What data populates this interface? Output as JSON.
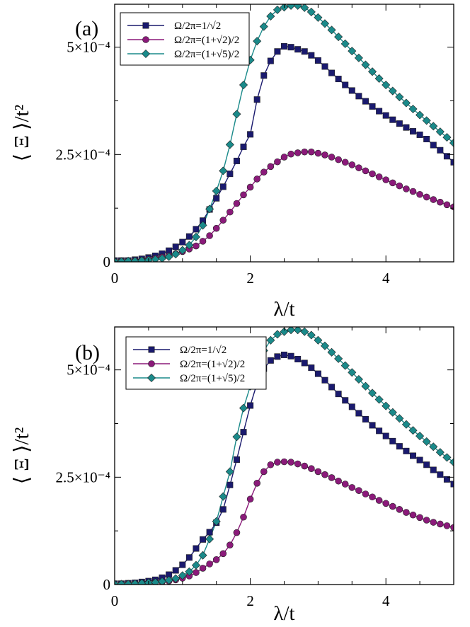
{
  "chart_data": [
    {
      "type": "line",
      "panel_label": "(a)",
      "xlabel": "λ/t",
      "ylabel": "⟨ Ξ ⟩/t²",
      "xlim": [
        0,
        5
      ],
      "ylim": [
        0,
        0.0006
      ],
      "xticks": [
        {
          "value": 0,
          "label": "0"
        },
        {
          "value": 2,
          "label": "2"
        },
        {
          "value": 4,
          "label": "4"
        }
      ],
      "yticks": [
        {
          "value": 0,
          "label": "0"
        },
        {
          "value": 0.00025,
          "label": "2.5×10⁻⁴"
        },
        {
          "value": 0.0005,
          "label": "5×10⁻⁴"
        }
      ],
      "legend_position": "top-left",
      "x": [
        0.0,
        0.1,
        0.2,
        0.3,
        0.4,
        0.5,
        0.6,
        0.7,
        0.8,
        0.9,
        1.0,
        1.1,
        1.2,
        1.3,
        1.4,
        1.5,
        1.6,
        1.7,
        1.8,
        1.9,
        2.0,
        2.1,
        2.2,
        2.3,
        2.4,
        2.5,
        2.6,
        2.7,
        2.8,
        2.9,
        3.0,
        3.1,
        3.2,
        3.3,
        3.4,
        3.5,
        3.6,
        3.7,
        3.8,
        3.9,
        4.0,
        4.1,
        4.2,
        4.3,
        4.4,
        4.5,
        4.6,
        4.7,
        4.8,
        4.9,
        5.0
      ],
      "series": [
        {
          "name": "Ω/2π=1/√2",
          "color": "#1a1a6e",
          "marker": "square",
          "values": [
            3e-06,
            3e-06,
            3e-06,
            5e-06,
            7e-06,
            1e-05,
            1.4e-05,
            1.9e-05,
            2.6e-05,
            3.5e-05,
            4.6e-05,
            5.9e-05,
            7.6e-05,
            9.6e-05,
            0.000122,
            0.000148,
            0.000175,
            0.000205,
            0.000235,
            0.000268,
            0.000297,
            0.000378,
            0.000434,
            0.000468,
            0.00049,
            0.000502,
            0.0005,
            0.000495,
            0.00049,
            0.000481,
            0.000469,
            0.000455,
            0.00044,
            0.000426,
            0.000412,
            0.000399,
            0.000386,
            0.000374,
            0.000362,
            0.000351,
            0.000341,
            0.000331,
            0.000322,
            0.000313,
            0.000304,
            0.000296,
            0.000286,
            0.000272,
            0.00026,
            0.000246,
            0.000232
          ]
        },
        {
          "name": "Ω/2π=(1+√2)/2",
          "color": "#8b1a7a",
          "marker": "circle",
          "values": [
            1e-06,
            2e-06,
            2e-06,
            3e-06,
            4e-06,
            6e-06,
            8e-06,
            1.1e-05,
            1.4e-05,
            1.9e-05,
            2.4e-05,
            3e-05,
            3.7e-05,
            4.8e-05,
            6.1e-05,
            7.8e-05,
            9.7e-05,
            0.000116,
            0.000136,
            0.000156,
            0.000174,
            0.000193,
            0.000209,
            0.000222,
            0.000233,
            0.000244,
            0.000251,
            0.000254,
            0.000256,
            0.000256,
            0.000253,
            0.000249,
            0.000244,
            0.000238,
            0.000232,
            0.000226,
            0.000219,
            0.000212,
            0.000205,
            0.000198,
            0.000191,
            0.000184,
            0.000177,
            0.00017,
            0.000164,
            0.000157,
            0.000151,
            0.000145,
            0.000139,
            0.000133,
            0.000128
          ]
        },
        {
          "name": "Ω/2π=(1+√5)/2",
          "color": "#1a8a8a",
          "marker": "diamond",
          "values": [
            1e-06,
            1e-06,
            2e-06,
            2e-06,
            3e-06,
            4e-06,
            6e-06,
            8e-06,
            1.2e-05,
            1.8e-05,
            2.7e-05,
            3.9e-05,
            5.8e-05,
            8.5e-05,
            0.000123,
            0.000165,
            0.000212,
            0.000273,
            0.000344,
            0.000412,
            0.00047,
            0.000514,
            0.000548,
            0.000572,
            0.000587,
            0.000593,
            0.000597,
            0.000597,
            0.000592,
            0.000582,
            0.000569,
            0.000555,
            0.00054,
            0.000524,
            0.000508,
            0.000491,
            0.000475,
            0.000459,
            0.000443,
            0.000427,
            0.000412,
            0.000398,
            0.000384,
            0.00037,
            0.000356,
            0.000342,
            0.000329,
            0.000316,
            0.000303,
            0.00029,
            0.000277
          ]
        }
      ]
    },
    {
      "type": "line",
      "panel_label": "(b)",
      "xlabel": "λ/t",
      "ylabel": "⟨ Ξ ⟩/t²",
      "xlim": [
        0,
        5
      ],
      "ylim": [
        0,
        0.0006
      ],
      "xticks": [
        {
          "value": 0,
          "label": "0"
        },
        {
          "value": 2,
          "label": "2"
        },
        {
          "value": 4,
          "label": "4"
        }
      ],
      "yticks": [
        {
          "value": 0,
          "label": "0"
        },
        {
          "value": 0.00025,
          "label": "2.5×10⁻⁴"
        },
        {
          "value": 0.0005,
          "label": "5×10⁻⁴"
        }
      ],
      "legend_position": "top-left",
      "x": [
        0.0,
        0.1,
        0.2,
        0.3,
        0.4,
        0.5,
        0.6,
        0.7,
        0.8,
        0.9,
        1.0,
        1.1,
        1.2,
        1.3,
        1.4,
        1.5,
        1.6,
        1.7,
        1.8,
        1.9,
        2.0,
        2.1,
        2.2,
        2.3,
        2.4,
        2.5,
        2.6,
        2.7,
        2.8,
        2.9,
        3.0,
        3.1,
        3.2,
        3.3,
        3.4,
        3.5,
        3.6,
        3.7,
        3.8,
        3.9,
        4.0,
        4.1,
        4.2,
        4.3,
        4.4,
        4.5,
        4.6,
        4.7,
        4.8,
        4.9,
        5.0
      ],
      "series": [
        {
          "name": "Ω/2π=1/√2",
          "color": "#1a1a6e",
          "marker": "square",
          "values": [
            2e-06,
            2e-06,
            3e-06,
            4e-06,
            6e-06,
            8e-06,
            1.1e-05,
            1.6e-05,
            2.3e-05,
            3.3e-05,
            4.6e-05,
            6.3e-05,
            8.4e-05,
            0.000105,
            0.000122,
            0.000144,
            0.000175,
            0.000232,
            0.000291,
            0.000355,
            0.000417,
            0.000469,
            0.000503,
            0.000522,
            0.000531,
            0.000535,
            0.000532,
            0.000525,
            0.000516,
            0.000505,
            0.000491,
            0.000476,
            0.00046,
            0.000444,
            0.000429,
            0.000414,
            0.000399,
            0.000385,
            0.000371,
            0.000358,
            0.000346,
            0.000334,
            0.000322,
            0.000311,
            0.0003,
            0.00029,
            0.000279,
            0.000267,
            0.000256,
            0.000245,
            0.000234
          ]
        },
        {
          "name": "Ω/2π=(1+√2)/2",
          "color": "#8b1a7a",
          "marker": "circle",
          "values": [
            1e-06,
            1e-06,
            2e-06,
            2e-06,
            3e-06,
            4e-06,
            5e-06,
            6e-06,
            8e-06,
            1.1e-05,
            1.5e-05,
            2e-05,
            2.8e-05,
            3.8e-05,
            4.8e-05,
            5.8e-05,
            7.2e-05,
            9.2e-05,
            0.000121,
            0.000157,
            0.000199,
            0.000236,
            0.000263,
            0.000279,
            0.000285,
            0.000286,
            0.000285,
            0.000281,
            0.000276,
            0.00027,
            0.000263,
            0.000256,
            0.000249,
            0.000241,
            0.000234,
            0.000226,
            0.000219,
            0.000211,
            0.000204,
            0.000196,
            0.000189,
            0.000182,
            0.000175,
            0.000168,
            0.000162,
            0.000156,
            0.00015,
            0.000145,
            0.000141,
            0.000137,
            0.000133
          ]
        },
        {
          "name": "Ω/2π=(1+√5)/2",
          "color": "#1a8a8a",
          "marker": "diamond",
          "values": [
            1e-06,
            1e-06,
            1e-06,
            2e-06,
            3e-06,
            4e-06,
            5e-06,
            7e-06,
            1e-05,
            1.4e-05,
            2.1e-05,
            3e-05,
            4.5e-05,
            6.8e-05,
            0.000106,
            0.000147,
            0.000205,
            0.000263,
            0.000344,
            0.000411,
            0.000462,
            0.000505,
            0.000545,
            0.000569,
            0.000583,
            0.000589,
            0.000593,
            0.000593,
            0.000589,
            0.000581,
            0.000569,
            0.000556,
            0.000541,
            0.000526,
            0.00051,
            0.000494,
            0.000478,
            0.000462,
            0.000446,
            0.000431,
            0.000416,
            0.000401,
            0.000387,
            0.000373,
            0.000359,
            0.000346,
            0.000333,
            0.000321,
            0.000308,
            0.000296,
            0.000285
          ]
        }
      ]
    }
  ]
}
